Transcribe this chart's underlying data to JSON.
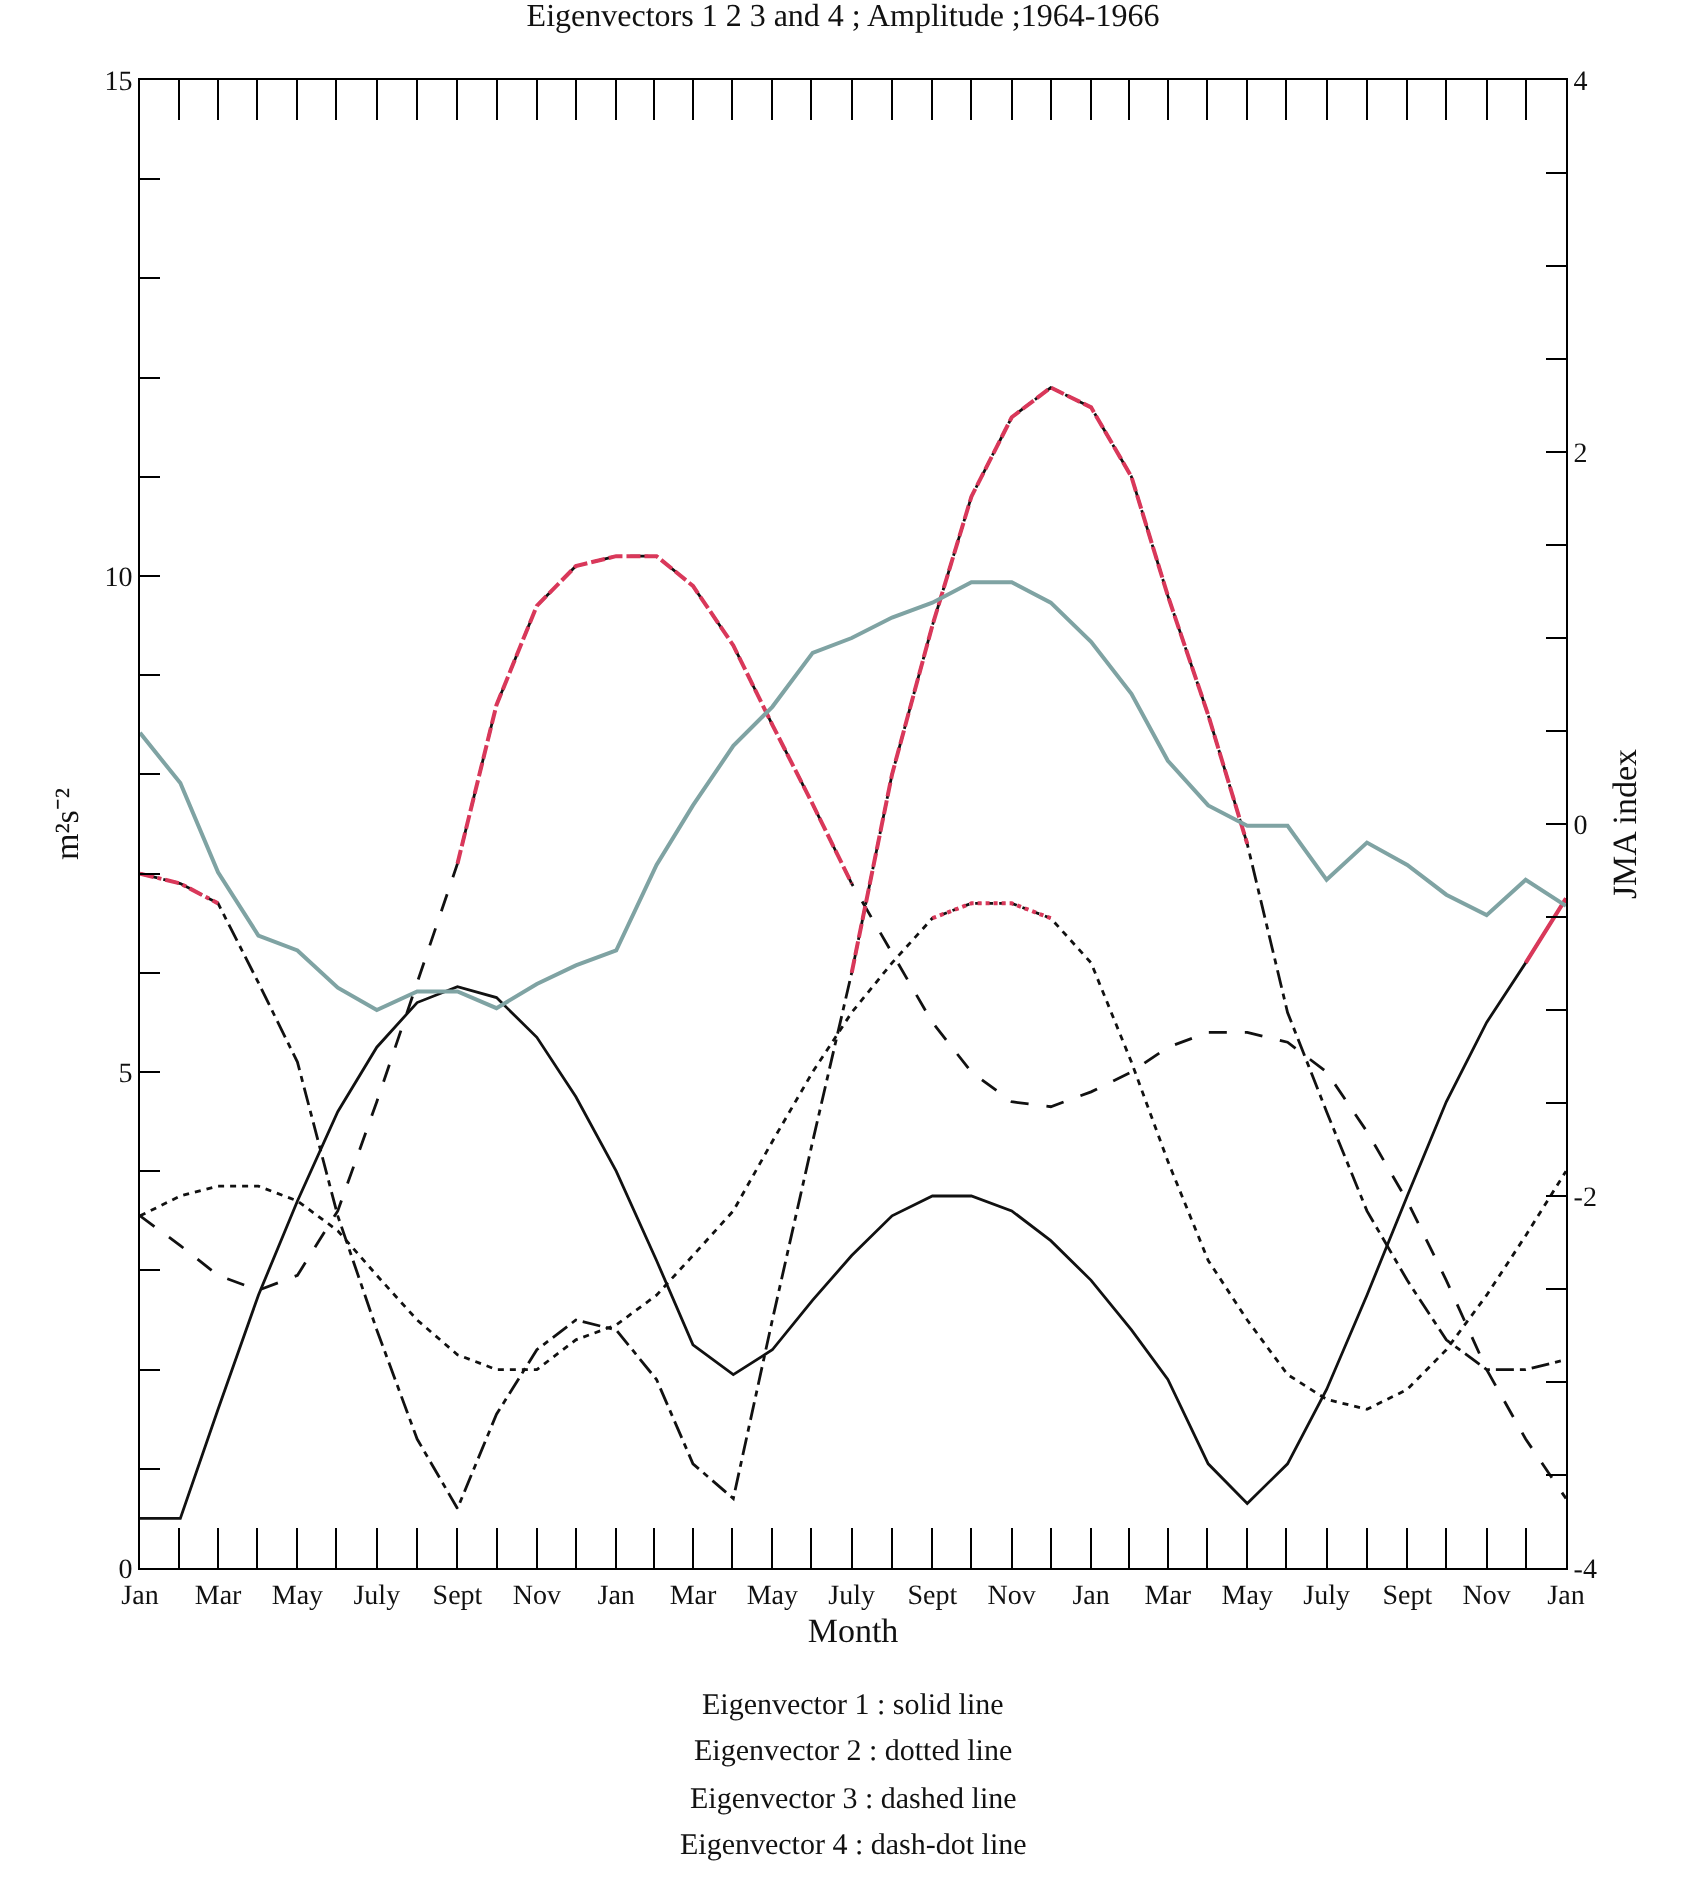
{
  "chart_data": {
    "type": "line",
    "title": "Eigenvectors 1 2 3 and 4 ; Amplitude ;1964-1966",
    "xlabel": "Month",
    "ylabel": "m²s⁻²",
    "y2label": "JMA index",
    "x": [
      "1964-01",
      "1964-02",
      "1964-03",
      "1964-04",
      "1964-05",
      "1964-06",
      "1964-07",
      "1964-08",
      "1964-09",
      "1964-10",
      "1964-11",
      "1964-12",
      "1965-01",
      "1965-02",
      "1965-03",
      "1965-04",
      "1965-05",
      "1965-06",
      "1965-07",
      "1965-08",
      "1965-09",
      "1965-10",
      "1965-11",
      "1965-12",
      "1966-01",
      "1966-02",
      "1966-03",
      "1966-04",
      "1966-05",
      "1966-06",
      "1966-07",
      "1966-08",
      "1966-09",
      "1966-10",
      "1966-11",
      "1966-12",
      "1967-01"
    ],
    "xlim": [
      "1964-01",
      "1967-01"
    ],
    "xticks": [
      {
        "value": "1964-01",
        "label": "Jan"
      },
      {
        "value": "1964-03",
        "label": "Mar"
      },
      {
        "value": "1964-05",
        "label": "May"
      },
      {
        "value": "1964-07",
        "label": "July"
      },
      {
        "value": "1964-09",
        "label": "Sept"
      },
      {
        "value": "1964-11",
        "label": "Nov"
      },
      {
        "value": "1965-01",
        "label": "Jan"
      },
      {
        "value": "1965-03",
        "label": "Mar"
      },
      {
        "value": "1965-05",
        "label": "May"
      },
      {
        "value": "1965-07",
        "label": "July"
      },
      {
        "value": "1965-09",
        "label": "Sept"
      },
      {
        "value": "1965-11",
        "label": "Nov"
      },
      {
        "value": "1966-01",
        "label": "Jan"
      },
      {
        "value": "1966-03",
        "label": "Mar"
      },
      {
        "value": "1966-05",
        "label": "May"
      },
      {
        "value": "1966-07",
        "label": "July"
      },
      {
        "value": "1966-09",
        "label": "Sept"
      },
      {
        "value": "1966-11",
        "label": "Nov"
      },
      {
        "value": "1967-01",
        "label": "Jan"
      }
    ],
    "ylim": [
      0,
      15
    ],
    "yticks": [
      0,
      {
        "value": 1,
        "label": null
      },
      {
        "value": 2,
        "label": null
      },
      {
        "value": 3,
        "label": null
      },
      {
        "value": 4,
        "label": null
      },
      5,
      {
        "value": 6,
        "label": null
      },
      {
        "value": 7,
        "label": null
      },
      {
        "value": 8,
        "label": null
      },
      {
        "value": 9,
        "label": null
      },
      10,
      {
        "value": 11,
        "label": null
      },
      {
        "value": 12,
        "label": null
      },
      {
        "value": 13,
        "label": null
      },
      {
        "value": 14,
        "label": null
      },
      15
    ],
    "y2lim": [
      -4,
      4
    ],
    "y2ticks": [
      -4,
      {
        "value": -3.5,
        "label": null
      },
      {
        "value": -3,
        "label": null
      },
      {
        "value": -2.5,
        "label": null
      },
      -2,
      {
        "value": -1.5,
        "label": null
      },
      {
        "value": -1,
        "label": null
      },
      {
        "value": -0.5,
        "label": null
      },
      0,
      {
        "value": 0.5,
        "label": null
      },
      {
        "value": 1,
        "label": null
      },
      {
        "value": 1.5,
        "label": null
      },
      2,
      {
        "value": 2.5,
        "label": null
      },
      {
        "value": 3,
        "label": null
      },
      {
        "value": 3.5,
        "label": null
      },
      4
    ],
    "series": [
      {
        "color": "#111111",
        "line_style": "solid",
        "values": [
          0.5,
          0.5,
          1.6,
          2.75,
          3.7,
          4.6,
          5.25,
          5.7,
          5.86,
          5.75,
          5.35,
          4.75,
          4.0,
          3.1,
          2.25,
          1.95,
          2.2,
          2.7,
          3.15,
          3.55,
          3.75,
          3.75,
          3.6,
          3.3,
          2.9,
          2.4,
          1.9,
          1.05,
          0.65,
          1.05,
          1.8,
          2.75,
          3.75,
          4.7,
          5.5,
          6.1,
          6.75
        ]
      },
      {
        "color": "#111111",
        "line_style": "dotted",
        "values": [
          3.55,
          3.75,
          3.85,
          3.85,
          3.7,
          3.4,
          2.95,
          2.5,
          2.15,
          2.0,
          2.0,
          2.3,
          2.45,
          2.75,
          3.15,
          3.6,
          4.3,
          5.0,
          5.6,
          6.1,
          6.55,
          6.7,
          6.7,
          6.55,
          6.1,
          5.1,
          4.1,
          3.1,
          2.5,
          1.95,
          1.7,
          1.6,
          1.8,
          2.2,
          2.75,
          3.35,
          4.0
        ]
      },
      {
        "color": "#111111",
        "line_style": "dashed",
        "values": [
          3.55,
          3.25,
          2.95,
          2.8,
          2.95,
          3.6,
          4.7,
          5.9,
          7.1,
          8.7,
          9.7,
          10.1,
          10.2,
          10.2,
          9.9,
          9.3,
          8.5,
          7.7,
          6.9,
          6.2,
          5.5,
          5.0,
          4.7,
          4.65,
          4.8,
          5.0,
          5.25,
          5.4,
          5.4,
          5.3,
          5.0,
          4.4,
          3.7,
          2.9,
          2.0,
          1.3,
          0.7
        ]
      },
      {
        "color": "#111111",
        "line_style": "dashdot",
        "values": [
          7.0,
          6.9,
          6.7,
          5.9,
          5.1,
          3.55,
          2.4,
          1.3,
          0.6,
          1.55,
          2.2,
          2.5,
          2.4,
          1.9,
          1.05,
          0.7,
          2.5,
          4.3,
          6.0,
          8.0,
          9.5,
          10.8,
          11.6,
          11.9,
          11.7,
          11.0,
          9.8,
          8.6,
          7.3,
          5.6,
          4.6,
          3.6,
          2.9,
          2.3,
          2.0,
          2.0,
          2.1
        ]
      },
      {
        "color": "#7fa3a3",
        "line_style": "solid",
        "axis": "y2",
        "values": [
          0.49,
          0.22,
          -0.26,
          -0.6,
          -0.68,
          -0.88,
          -1.0,
          -0.9,
          -0.9,
          -0.99,
          -0.86,
          -0.76,
          -0.68,
          -0.22,
          0.1,
          0.42,
          0.63,
          0.92,
          1.0,
          1.11,
          1.19,
          1.3,
          1.3,
          1.19,
          0.98,
          0.7,
          0.34,
          0.1,
          -0.01,
          -0.01,
          -0.3,
          -0.1,
          -0.22,
          -0.38,
          -0.49,
          -0.3,
          -0.44
        ]
      },
      {
        "color": "#d9385a",
        "line_style": "dashdot",
        "values": [
          7.0,
          6.9,
          6.7,
          null,
          null,
          null,
          null,
          null,
          null,
          null,
          null,
          null,
          null,
          null,
          null,
          null,
          null,
          null,
          null,
          null,
          null,
          null,
          null,
          null,
          null,
          null,
          null,
          null,
          null,
          null,
          null,
          null,
          null,
          null,
          null,
          null,
          null
        ]
      },
      {
        "color": "#d9385a",
        "line_style": "dashed",
        "values": [
          null,
          null,
          null,
          null,
          null,
          null,
          null,
          null,
          7.1,
          8.7,
          9.7,
          10.1,
          10.2,
          10.2,
          9.9,
          9.3,
          8.5,
          7.7,
          6.9,
          null,
          null,
          null,
          null,
          null,
          null,
          null,
          null,
          null,
          null,
          null,
          null,
          null,
          null,
          null,
          null,
          null,
          null
        ]
      },
      {
        "color": "#d9385a",
        "line_style": "dashed",
        "values": [
          null,
          null,
          null,
          null,
          null,
          null,
          null,
          null,
          null,
          null,
          null,
          null,
          null,
          null,
          null,
          null,
          null,
          null,
          6.0,
          8.0,
          9.5,
          10.8,
          11.6,
          11.9,
          11.7,
          11.0,
          9.8,
          8.6,
          7.3,
          null,
          null,
          null,
          null,
          null,
          null,
          null,
          null
        ]
      },
      {
        "color": "#d9385a",
        "line_style": "dotted",
        "values": [
          null,
          null,
          null,
          null,
          null,
          null,
          null,
          null,
          null,
          null,
          null,
          null,
          null,
          null,
          null,
          null,
          null,
          null,
          null,
          null,
          6.55,
          6.7,
          6.7,
          6.55,
          null,
          null,
          null,
          null,
          null,
          null,
          null,
          null,
          null,
          null,
          null,
          null,
          null
        ]
      },
      {
        "color": "#d9385a",
        "line_style": "solid",
        "values": [
          null,
          null,
          null,
          null,
          null,
          null,
          null,
          null,
          null,
          null,
          null,
          null,
          null,
          null,
          null,
          null,
          null,
          null,
          null,
          null,
          null,
          null,
          null,
          null,
          null,
          null,
          null,
          null,
          null,
          null,
          null,
          null,
          null,
          null,
          null,
          6.1,
          6.75
        ]
      }
    ],
    "annotations": [
      "Eigenvector 1 : solid line",
      "Eigenvector 2 : dotted line",
      "Eigenvector 3 : dashed line",
      "Eigenvector 4 : dash-dot line"
    ]
  }
}
